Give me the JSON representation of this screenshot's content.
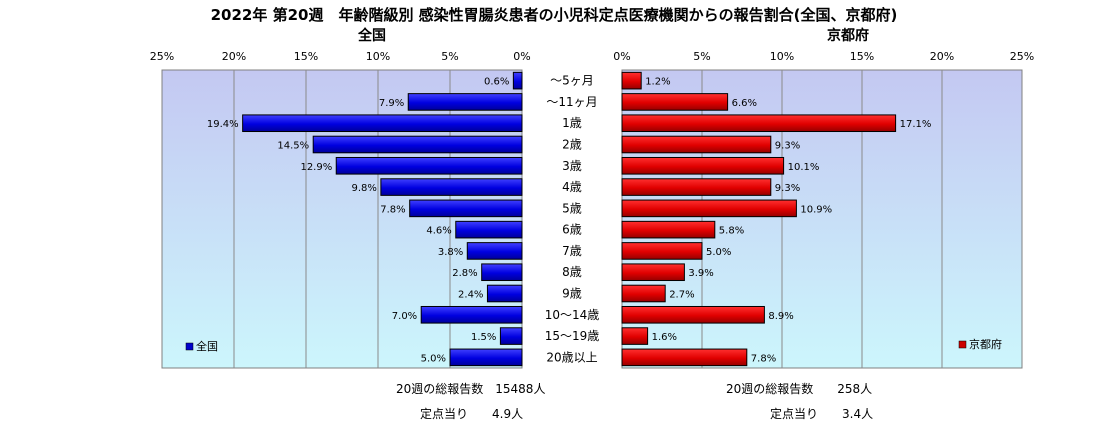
{
  "chart_data": {
    "type": "bar",
    "title": "2022年 第20週　年齢階級別 感染性胃腸炎患者の小児科定点医療機関からの報告割合(全国、京都府)",
    "categories": [
      "～5ヶ月",
      "～11ヶ月",
      "1歳",
      "2歳",
      "3歳",
      "4歳",
      "5歳",
      "6歳",
      "7歳",
      "8歳",
      "9歳",
      "10～14歳",
      "15～19歳",
      "20歳以上"
    ],
    "xlim": [
      0,
      25
    ],
    "ticks": [
      "0%",
      "5%",
      "10%",
      "15%",
      "20%",
      "25%"
    ],
    "grid": true,
    "series": [
      {
        "name": "全国",
        "side": "left",
        "color": "#0000cc",
        "values": [
          0.6,
          7.9,
          19.4,
          14.5,
          12.9,
          9.8,
          7.8,
          4.6,
          3.8,
          2.8,
          2.4,
          7.0,
          1.5,
          5.0
        ],
        "labels": [
          "0.6%",
          "7.9%",
          "19.4%",
          "14.5%",
          "12.9%",
          "9.8%",
          "7.8%",
          "4.6%",
          "3.8%",
          "2.8%",
          "2.4%",
          "7.0%",
          "1.5%",
          "5.0%"
        ]
      },
      {
        "name": "京都府",
        "side": "right",
        "color": "#cc0000",
        "values": [
          1.2,
          6.6,
          17.1,
          9.3,
          10.1,
          9.3,
          10.9,
          5.8,
          5.0,
          3.9,
          2.7,
          8.9,
          1.6,
          7.8
        ],
        "labels": [
          "1.2%",
          "6.6%",
          "17.1%",
          "9.3%",
          "10.1%",
          "9.3%",
          "10.9%",
          "5.8%",
          "5.0%",
          "3.9%",
          "2.7%",
          "8.9%",
          "1.6%",
          "7.8%"
        ]
      }
    ],
    "legend_position": "bottom-left / bottom-right"
  },
  "footer": {
    "left_total": "20週の総報告数　15488人",
    "left_per": "定点当り　　4.9人",
    "right_total": "20週の総報告数　　258人",
    "right_per": "定点当り　　3.4人"
  },
  "colors": {
    "plot_top": "#c4c8f2",
    "plot_bottom": "#ccf6fc",
    "grid": "#8a8a8a"
  }
}
